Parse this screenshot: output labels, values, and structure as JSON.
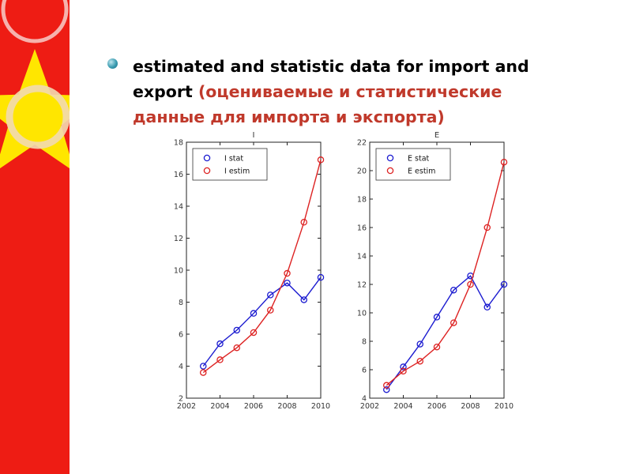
{
  "slide": {
    "bullet": {
      "text_en": "estimated and statistic data for import and export",
      "text_ru": "(оцениваемые и статистические данные для  импорта и экспорта)"
    }
  },
  "colors": {
    "band": "#ee1c14",
    "star": "#ffe600",
    "series_stat": "#1c1cd0",
    "series_estim": "#dd2222"
  },
  "chart_data": [
    {
      "type": "line",
      "title": "I",
      "xlim": [
        2002,
        2010
      ],
      "ylim": [
        2,
        18
      ],
      "xticks": [
        "2002",
        "2004",
        "2006",
        "2008",
        "2010"
      ],
      "yticks": [
        "2",
        "4",
        "6",
        "8",
        "10",
        "12",
        "14",
        "16",
        "18"
      ],
      "legend": "top-left",
      "grid": false,
      "series": [
        {
          "name": "I stat",
          "color": "#1c1cd0",
          "x": [
            2003,
            2004,
            2005,
            2006,
            2007,
            2008,
            2009,
            2010
          ],
          "y": [
            4.0,
            5.4,
            6.25,
            7.3,
            8.45,
            9.2,
            8.15,
            9.55
          ]
        },
        {
          "name": "I estim",
          "color": "#dd2222",
          "x": [
            2003,
            2004,
            2005,
            2006,
            2007,
            2008,
            2009,
            2010
          ],
          "y": [
            3.6,
            4.4,
            5.15,
            6.1,
            7.5,
            9.8,
            13.0,
            16.9
          ]
        }
      ]
    },
    {
      "type": "line",
      "title": "E",
      "xlim": [
        2002,
        2010
      ],
      "ylim": [
        4,
        22
      ],
      "xticks": [
        "2002",
        "2004",
        "2006",
        "2008",
        "2010"
      ],
      "yticks": [
        "4",
        "6",
        "8",
        "10",
        "12",
        "14",
        "16",
        "18",
        "20",
        "22"
      ],
      "legend": "top-left",
      "grid": false,
      "series": [
        {
          "name": "E stat",
          "color": "#1c1cd0",
          "x": [
            2003,
            2004,
            2005,
            2006,
            2007,
            2008,
            2009,
            2010
          ],
          "y": [
            4.6,
            6.2,
            7.8,
            9.7,
            11.6,
            12.6,
            10.4,
            12.0
          ]
        },
        {
          "name": "E estim",
          "color": "#dd2222",
          "x": [
            2003,
            2004,
            2005,
            2006,
            2007,
            2008,
            2009,
            2010
          ],
          "y": [
            4.9,
            5.9,
            6.6,
            7.6,
            9.3,
            12.0,
            16.0,
            20.6
          ]
        }
      ]
    }
  ]
}
